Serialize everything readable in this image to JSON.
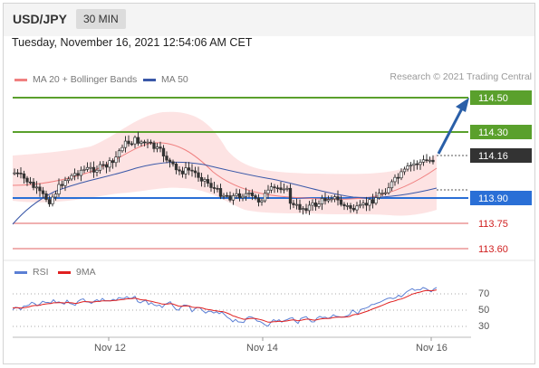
{
  "header": {
    "symbol": "USD/JPY",
    "timeframe": "30 MIN"
  },
  "datetime": "Tuesday, November 16, 2021 12:54:06 AM CET",
  "legend_main": [
    {
      "label": "MA 20 + Bollinger Bands",
      "color": "#f08080"
    },
    {
      "label": "MA 50",
      "color": "#3a58a8"
    }
  ],
  "credit": "Research © 2021 Trading Central",
  "price_levels": [
    {
      "label": "114.50",
      "kind": "resistance",
      "color": "#5aa02c"
    },
    {
      "label": "114.30",
      "kind": "resistance",
      "color": "#5aa02c"
    },
    {
      "label": "114.16",
      "kind": "last",
      "color": "#333333"
    },
    {
      "label": "113.90",
      "kind": "support-pivot",
      "color": "#2a6fd6"
    },
    {
      "label": "113.75",
      "kind": "support",
      "color": "#e03030"
    },
    {
      "label": "113.60",
      "kind": "support",
      "color": "#e03030"
    }
  ],
  "legend_rsi": [
    {
      "label": "RSI",
      "color": "#5b7fd4"
    },
    {
      "label": "9MA",
      "color": "#e02020"
    }
  ],
  "rsi_levels": [
    "70",
    "50",
    "30"
  ],
  "x_axis_labels": [
    "Nov 12",
    "Nov 14",
    "Nov 16"
  ]
}
